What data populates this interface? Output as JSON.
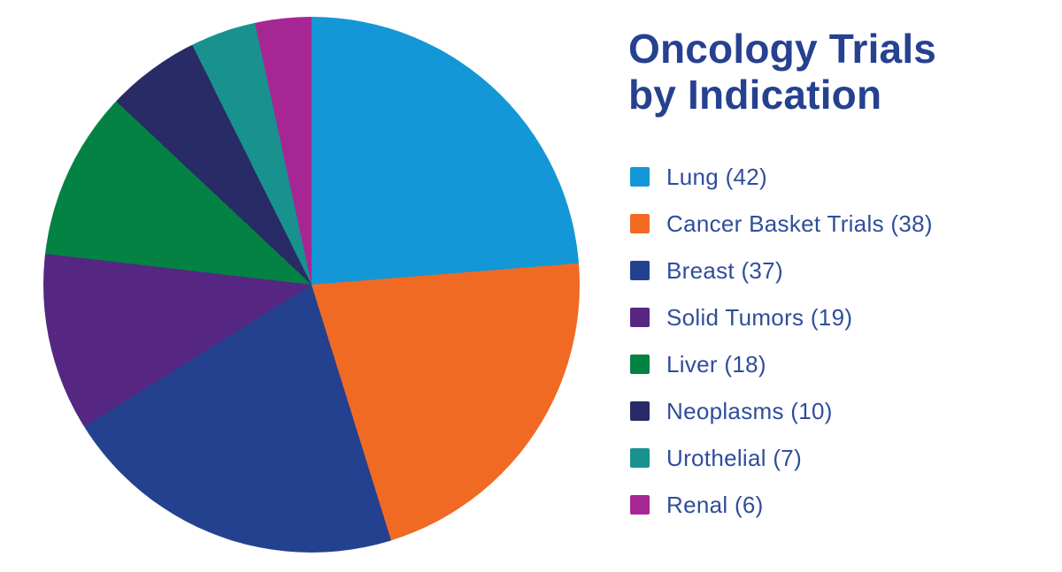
{
  "chart_data": {
    "type": "pie",
    "title": "Oncology Trials by Indication",
    "title_lines": [
      "Oncology Trials",
      "by Indication"
    ],
    "title_color": "#26418F",
    "legend_text_color": "#2F4D9C",
    "legend_position": "right",
    "start_angle_deg": 0,
    "direction": "clockwise",
    "total": 177,
    "slices": [
      {
        "label": "Lung",
        "value": 42,
        "color": "#1397D6"
      },
      {
        "label": "Cancer Basket Trials",
        "value": 38,
        "color": "#F06A24"
      },
      {
        "label": "Breast",
        "value": 37,
        "color": "#24418F"
      },
      {
        "label": "Solid Tumors",
        "value": 19,
        "color": "#552782"
      },
      {
        "label": "Liver",
        "value": 18,
        "color": "#038243"
      },
      {
        "label": "Neoplasms",
        "value": 10,
        "color": "#282B66"
      },
      {
        "label": "Urothelial",
        "value": 7,
        "color": "#18918F"
      },
      {
        "label": "Renal",
        "value": 6,
        "color": "#A62794"
      }
    ]
  }
}
